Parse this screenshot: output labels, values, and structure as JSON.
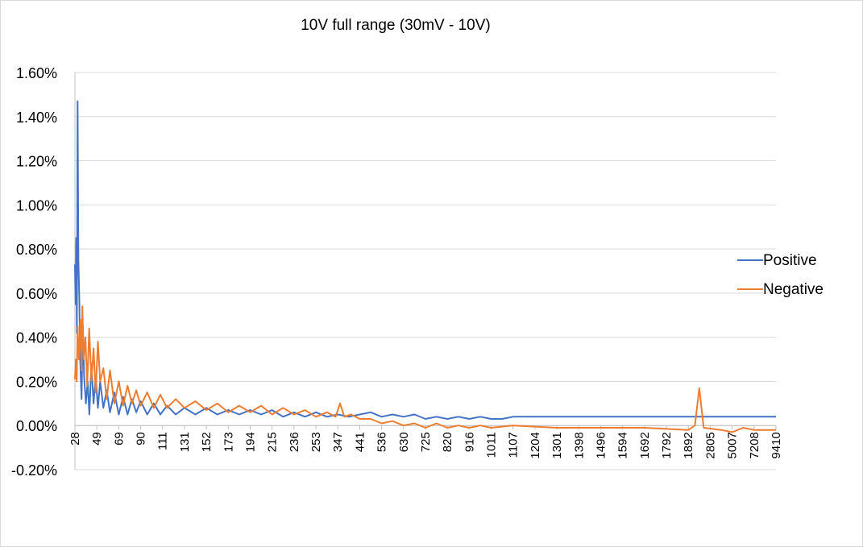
{
  "chart_data": {
    "type": "line",
    "title": "10V full range (30mV - 10V)",
    "xlabel": "",
    "ylabel": "",
    "ylim": [
      -0.2,
      1.6
    ],
    "y_tick_step": 0.2,
    "y_tick_format": "percent_2dp",
    "grid": true,
    "legend_position": "right",
    "x_tick_labels": [
      "28",
      "49",
      "69",
      "90",
      "111",
      "131",
      "152",
      "173",
      "194",
      "215",
      "236",
      "253",
      "347",
      "441",
      "536",
      "630",
      "725",
      "820",
      "916",
      "1011",
      "1107",
      "1204",
      "1301",
      "1398",
      "1496",
      "1594",
      "1692",
      "1792",
      "1892",
      "2805",
      "5007",
      "7208",
      "9410"
    ],
    "series": [
      {
        "name": "Positive",
        "color": "#4472C4",
        "points": [
          [
            0,
            0.73
          ],
          [
            0.03,
            0.55
          ],
          [
            0.06,
            0.85
          ],
          [
            0.09,
            0.42
          ],
          [
            0.12,
            1.47
          ],
          [
            0.16,
            0.75
          ],
          [
            0.2,
            0.58
          ],
          [
            0.24,
            0.3
          ],
          [
            0.3,
            0.12
          ],
          [
            0.36,
            0.45
          ],
          [
            0.42,
            0.22
          ],
          [
            0.5,
            0.1
          ],
          [
            0.58,
            0.2
          ],
          [
            0.66,
            0.05
          ],
          [
            0.75,
            0.28
          ],
          [
            0.85,
            0.1
          ],
          [
            0.95,
            0.22
          ],
          [
            1.05,
            0.08
          ],
          [
            1.15,
            0.2
          ],
          [
            1.3,
            0.08
          ],
          [
            1.45,
            0.16
          ],
          [
            1.6,
            0.06
          ],
          [
            1.8,
            0.15
          ],
          [
            2.0,
            0.05
          ],
          [
            2.2,
            0.13
          ],
          [
            2.4,
            0.05
          ],
          [
            2.6,
            0.12
          ],
          [
            2.8,
            0.06
          ],
          [
            3.0,
            0.11
          ],
          [
            3.3,
            0.05
          ],
          [
            3.6,
            0.1
          ],
          [
            3.9,
            0.05
          ],
          [
            4.2,
            0.09
          ],
          [
            4.6,
            0.05
          ],
          [
            5.0,
            0.08
          ],
          [
            5.5,
            0.05
          ],
          [
            6.0,
            0.08
          ],
          [
            6.5,
            0.05
          ],
          [
            7.0,
            0.07
          ],
          [
            7.5,
            0.05
          ],
          [
            8.0,
            0.07
          ],
          [
            8.5,
            0.05
          ],
          [
            9.0,
            0.07
          ],
          [
            9.5,
            0.04
          ],
          [
            10.0,
            0.06
          ],
          [
            10.5,
            0.04
          ],
          [
            11.0,
            0.06
          ],
          [
            11.5,
            0.04
          ],
          [
            12.0,
            0.05
          ],
          [
            12.5,
            0.04
          ],
          [
            13.0,
            0.05
          ],
          [
            13.5,
            0.06
          ],
          [
            14.0,
            0.04
          ],
          [
            14.5,
            0.05
          ],
          [
            15.0,
            0.04
          ],
          [
            15.5,
            0.05
          ],
          [
            16.0,
            0.03
          ],
          [
            16.5,
            0.04
          ],
          [
            17.0,
            0.03
          ],
          [
            17.5,
            0.04
          ],
          [
            18.0,
            0.03
          ],
          [
            18.5,
            0.04
          ],
          [
            19.0,
            0.03
          ],
          [
            19.5,
            0.03
          ],
          [
            20.0,
            0.04
          ],
          [
            20.5,
            0.04
          ],
          [
            32.0,
            0.04
          ]
        ]
      },
      {
        "name": "Negative",
        "color": "#ED7D31",
        "points": [
          [
            0,
            0.21
          ],
          [
            0.04,
            0.3
          ],
          [
            0.08,
            0.2
          ],
          [
            0.12,
            0.45
          ],
          [
            0.18,
            0.3
          ],
          [
            0.25,
            0.48
          ],
          [
            0.3,
            0.25
          ],
          [
            0.34,
            0.54
          ],
          [
            0.4,
            0.3
          ],
          [
            0.48,
            0.4
          ],
          [
            0.56,
            0.18
          ],
          [
            0.65,
            0.44
          ],
          [
            0.75,
            0.2
          ],
          [
            0.85,
            0.35
          ],
          [
            0.95,
            0.15
          ],
          [
            1.05,
            0.38
          ],
          [
            1.15,
            0.2
          ],
          [
            1.3,
            0.26
          ],
          [
            1.45,
            0.12
          ],
          [
            1.6,
            0.25
          ],
          [
            1.8,
            0.1
          ],
          [
            2.0,
            0.2
          ],
          [
            2.2,
            0.09
          ],
          [
            2.4,
            0.18
          ],
          [
            2.6,
            0.1
          ],
          [
            2.8,
            0.16
          ],
          [
            3.0,
            0.09
          ],
          [
            3.3,
            0.15
          ],
          [
            3.6,
            0.08
          ],
          [
            3.9,
            0.14
          ],
          [
            4.2,
            0.08
          ],
          [
            4.6,
            0.12
          ],
          [
            5.0,
            0.08
          ],
          [
            5.5,
            0.11
          ],
          [
            6.0,
            0.07
          ],
          [
            6.5,
            0.1
          ],
          [
            7.0,
            0.06
          ],
          [
            7.5,
            0.09
          ],
          [
            8.0,
            0.06
          ],
          [
            8.5,
            0.09
          ],
          [
            9.0,
            0.05
          ],
          [
            9.5,
            0.08
          ],
          [
            10.0,
            0.05
          ],
          [
            10.5,
            0.07
          ],
          [
            11.0,
            0.04
          ],
          [
            11.5,
            0.06
          ],
          [
            11.9,
            0.04
          ],
          [
            12.1,
            0.1
          ],
          [
            12.3,
            0.04
          ],
          [
            12.6,
            0.05
          ],
          [
            13.0,
            0.03
          ],
          [
            13.5,
            0.03
          ],
          [
            14.0,
            0.01
          ],
          [
            14.5,
            0.02
          ],
          [
            15.0,
            0.0
          ],
          [
            15.5,
            0.01
          ],
          [
            16.0,
            -0.01
          ],
          [
            16.5,
            0.01
          ],
          [
            17.0,
            -0.01
          ],
          [
            17.5,
            0.0
          ],
          [
            18.0,
            -0.01
          ],
          [
            18.5,
            0.0
          ],
          [
            19.0,
            -0.01
          ],
          [
            20.0,
            0.0
          ],
          [
            22.0,
            -0.01
          ],
          [
            24.0,
            -0.01
          ],
          [
            26.0,
            -0.01
          ],
          [
            28.0,
            -0.02
          ],
          [
            28.3,
            0.0
          ],
          [
            28.5,
            0.17
          ],
          [
            28.7,
            -0.01
          ],
          [
            29.5,
            -0.02
          ],
          [
            30.0,
            -0.03
          ],
          [
            30.5,
            -0.01
          ],
          [
            31.0,
            -0.02
          ],
          [
            32.0,
            -0.02
          ]
        ]
      }
    ]
  }
}
